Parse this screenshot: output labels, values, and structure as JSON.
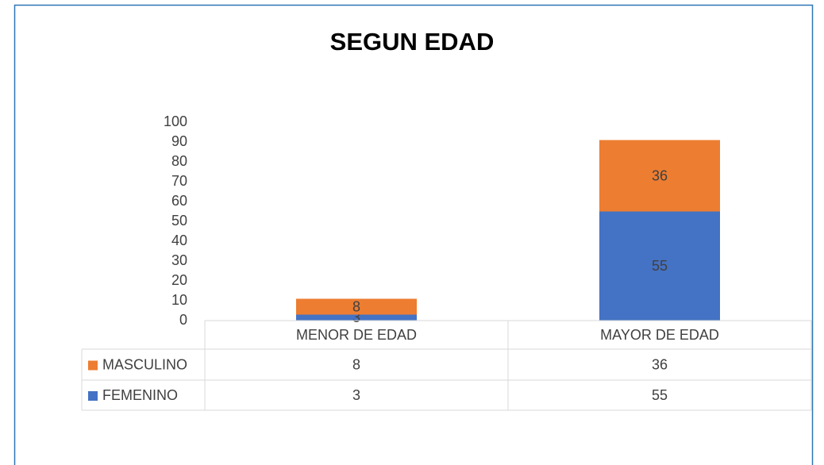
{
  "chart_data": {
    "type": "stacked_bar",
    "title": "SEGUN EDAD",
    "categories": [
      "MENOR DE EDAD",
      "MAYOR DE EDAD"
    ],
    "series": [
      {
        "name": "FEMENINO",
        "color": "#4472c4",
        "values": [
          3,
          55
        ]
      },
      {
        "name": "MASCULINO",
        "color": "#ed7d31",
        "values": [
          8,
          36
        ]
      }
    ],
    "ylim": [
      0,
      100
    ],
    "yticks": [
      0,
      10,
      20,
      30,
      40,
      50,
      60,
      70,
      80,
      90,
      100
    ],
    "grid": false,
    "data_table": true
  }
}
